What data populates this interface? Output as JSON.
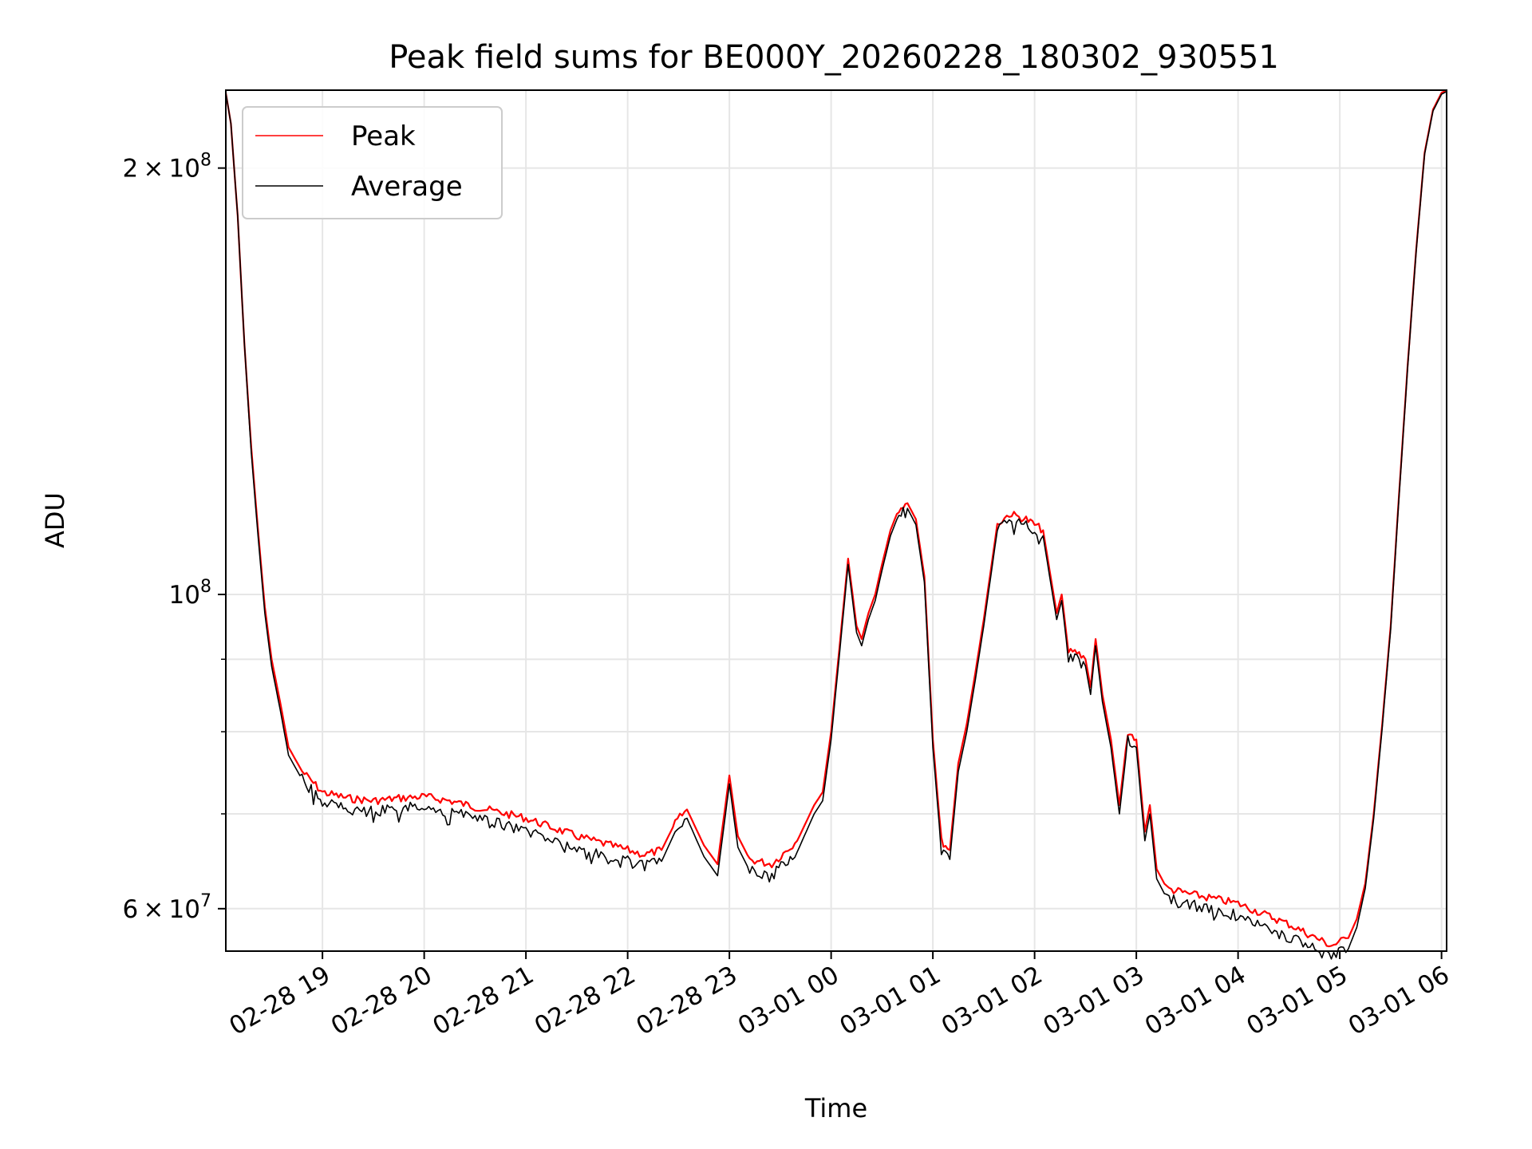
{
  "chart_data": {
    "type": "line",
    "title": "Peak field sums for BE000Y_20260228_180302_930551",
    "xlabel": "Time",
    "ylabel": "ADU",
    "x_start": "2026-02-28 18:03",
    "x_end": "2026-03-01 06:03",
    "xlim": [
      "2026-02-28 18:03",
      "2026-03-01 06:03"
    ],
    "yscale": "log",
    "ylim": [
      56000000,
      227000000
    ],
    "grid": true,
    "legend_position": "top-left",
    "x_ticks": [
      {
        "time": "2026-02-28 19:00",
        "label": "02-28 19"
      },
      {
        "time": "2026-02-28 20:00",
        "label": "02-28 20"
      },
      {
        "time": "2026-02-28 21:00",
        "label": "02-28 21"
      },
      {
        "time": "2026-02-28 22:00",
        "label": "02-28 22"
      },
      {
        "time": "2026-02-28 23:00",
        "label": "02-28 23"
      },
      {
        "time": "2026-03-01 00:00",
        "label": "03-01 00"
      },
      {
        "time": "2026-03-01 01:00",
        "label": "03-01 01"
      },
      {
        "time": "2026-03-01 02:00",
        "label": "03-01 02"
      },
      {
        "time": "2026-03-01 03:00",
        "label": "03-01 03"
      },
      {
        "time": "2026-03-01 04:00",
        "label": "03-01 04"
      },
      {
        "time": "2026-03-01 05:00",
        "label": "03-01 05"
      },
      {
        "time": "2026-03-01 06:00",
        "label": "03-01 06"
      }
    ],
    "y_major_ticks": [
      {
        "value": 60000000,
        "mantissa": "6",
        "exponent": "7"
      },
      {
        "value": 100000000,
        "mantissa": "",
        "exponent": "8"
      },
      {
        "value": 200000000,
        "mantissa": "2",
        "exponent": "8"
      }
    ],
    "y_minor_ticks": [
      70000000,
      80000000,
      90000000
    ],
    "series": [
      {
        "name": "Peak",
        "color": "#ff0000",
        "x": [
          "2026-02-28 18:03",
          "2026-02-28 18:06",
          "2026-02-28 18:10",
          "2026-02-28 18:14",
          "2026-02-28 18:18",
          "2026-02-28 18:22",
          "2026-02-28 18:26",
          "2026-02-28 18:30",
          "2026-02-28 18:35",
          "2026-02-28 18:40",
          "2026-02-28 18:48",
          "2026-02-28 19:00",
          "2026-02-28 19:15",
          "2026-02-28 19:30",
          "2026-02-28 19:45",
          "2026-02-28 20:00",
          "2026-02-28 20:15",
          "2026-02-28 20:30",
          "2026-02-28 21:00",
          "2026-02-28 21:30",
          "2026-02-28 22:00",
          "2026-02-28 22:10",
          "2026-02-28 22:20",
          "2026-02-28 22:28",
          "2026-02-28 22:35",
          "2026-02-28 22:45",
          "2026-02-28 22:53",
          "2026-02-28 23:00",
          "2026-02-28 23:05",
          "2026-02-28 23:12",
          "2026-02-28 23:25",
          "2026-02-28 23:40",
          "2026-02-28 23:50",
          "2026-02-28 23:55",
          "2026-03-01 00:00",
          "2026-03-01 00:05",
          "2026-03-01 00:10",
          "2026-03-01 00:15",
          "2026-03-01 00:18",
          "2026-03-01 00:22",
          "2026-03-01 00:26",
          "2026-03-01 00:30",
          "2026-03-01 00:35",
          "2026-03-01 00:40",
          "2026-03-01 00:45",
          "2026-03-01 00:50",
          "2026-03-01 00:55",
          "2026-03-01 01:00",
          "2026-03-01 01:05",
          "2026-03-01 01:10",
          "2026-03-01 01:15",
          "2026-03-01 01:20",
          "2026-03-01 01:25",
          "2026-03-01 01:30",
          "2026-03-01 01:38",
          "2026-03-01 01:45",
          "2026-03-01 01:55",
          "2026-03-01 02:00",
          "2026-03-01 02:05",
          "2026-03-01 02:10",
          "2026-03-01 02:13",
          "2026-03-01 02:16",
          "2026-03-01 02:20",
          "2026-03-01 02:25",
          "2026-03-01 02:30",
          "2026-03-01 02:33",
          "2026-03-01 02:36",
          "2026-03-01 02:40",
          "2026-03-01 02:45",
          "2026-03-01 02:50",
          "2026-03-01 02:55",
          "2026-03-01 03:00",
          "2026-03-01 03:05",
          "2026-03-01 03:08",
          "2026-03-01 03:12",
          "2026-03-01 03:18",
          "2026-03-01 03:30",
          "2026-03-01 04:00",
          "2026-03-01 04:30",
          "2026-03-01 04:55",
          "2026-03-01 05:05",
          "2026-03-01 05:10",
          "2026-03-01 05:15",
          "2026-03-01 05:20",
          "2026-03-01 05:25",
          "2026-03-01 05:30",
          "2026-03-01 05:35",
          "2026-03-01 05:40",
          "2026-03-01 05:45",
          "2026-03-01 05:50",
          "2026-03-01 05:55",
          "2026-03-01 06:00",
          "2026-03-01 06:03"
        ],
        "y": [
          226000000,
          215000000,
          185000000,
          150000000,
          127000000,
          111000000,
          98000000,
          90000000,
          84000000,
          78000000,
          75000000,
          72500000,
          71800000,
          71500000,
          71800000,
          72000000,
          71500000,
          70800000,
          69500000,
          67500000,
          66000000,
          65500000,
          66000000,
          69000000,
          70500000,
          66500000,
          64500000,
          74500000,
          67500000,
          65000000,
          64500000,
          67000000,
          71000000,
          72500000,
          80000000,
          92000000,
          106000000,
          95000000,
          93000000,
          97000000,
          100000000,
          105000000,
          111000000,
          115000000,
          116000000,
          113000000,
          103000000,
          79000000,
          67000000,
          66000000,
          76000000,
          81000000,
          88000000,
          96000000,
          112000000,
          114000000,
          113000000,
          112000000,
          111000000,
          102000000,
          97000000,
          100000000,
          91000000,
          91000000,
          90000000,
          86000000,
          93000000,
          85000000,
          79000000,
          71000000,
          80000000,
          79000000,
          68000000,
          71000000,
          64000000,
          62000000,
          61500000,
          60500000,
          58500000,
          56500000,
          57200000,
          59000000,
          62500000,
          70000000,
          81000000,
          95000000,
          118000000,
          145000000,
          175000000,
          205000000,
          220000000,
          226000000,
          227000000
        ]
      },
      {
        "name": "Average",
        "color": "#000000",
        "x": [
          "2026-02-28 18:03",
          "2026-02-28 18:06",
          "2026-02-28 18:10",
          "2026-02-28 18:14",
          "2026-02-28 18:18",
          "2026-02-28 18:22",
          "2026-02-28 18:26",
          "2026-02-28 18:30",
          "2026-02-28 18:35",
          "2026-02-28 18:40",
          "2026-02-28 18:48",
          "2026-02-28 19:00",
          "2026-02-28 19:15",
          "2026-02-28 19:30",
          "2026-02-28 19:45",
          "2026-02-28 20:00",
          "2026-02-28 20:15",
          "2026-02-28 20:30",
          "2026-02-28 21:00",
          "2026-02-28 21:30",
          "2026-02-28 22:00",
          "2026-02-28 22:10",
          "2026-02-28 22:20",
          "2026-02-28 22:28",
          "2026-02-28 22:35",
          "2026-02-28 22:45",
          "2026-02-28 22:53",
          "2026-02-28 23:00",
          "2026-02-28 23:05",
          "2026-02-28 23:12",
          "2026-02-28 23:25",
          "2026-02-28 23:40",
          "2026-02-28 23:50",
          "2026-02-28 23:55",
          "2026-03-01 00:00",
          "2026-03-01 00:05",
          "2026-03-01 00:10",
          "2026-03-01 00:15",
          "2026-03-01 00:18",
          "2026-03-01 00:22",
          "2026-03-01 00:26",
          "2026-03-01 00:30",
          "2026-03-01 00:35",
          "2026-03-01 00:40",
          "2026-03-01 00:45",
          "2026-03-01 00:50",
          "2026-03-01 00:55",
          "2026-03-01 01:00",
          "2026-03-01 01:05",
          "2026-03-01 01:10",
          "2026-03-01 01:15",
          "2026-03-01 01:20",
          "2026-03-01 01:25",
          "2026-03-01 01:30",
          "2026-03-01 01:38",
          "2026-03-01 01:45",
          "2026-03-01 01:55",
          "2026-03-01 02:00",
          "2026-03-01 02:05",
          "2026-03-01 02:10",
          "2026-03-01 02:13",
          "2026-03-01 02:16",
          "2026-03-01 02:20",
          "2026-03-01 02:25",
          "2026-03-01 02:30",
          "2026-03-01 02:33",
          "2026-03-01 02:36",
          "2026-03-01 02:40",
          "2026-03-01 02:45",
          "2026-03-01 02:50",
          "2026-03-01 02:55",
          "2026-03-01 03:00",
          "2026-03-01 03:05",
          "2026-03-01 03:08",
          "2026-03-01 03:12",
          "2026-03-01 03:18",
          "2026-03-01 03:30",
          "2026-03-01 04:00",
          "2026-03-01 04:30",
          "2026-03-01 04:55",
          "2026-03-01 05:05",
          "2026-03-01 05:10",
          "2026-03-01 05:15",
          "2026-03-01 05:20",
          "2026-03-01 05:25",
          "2026-03-01 05:30",
          "2026-03-01 05:35",
          "2026-03-01 05:40",
          "2026-03-01 05:45",
          "2026-03-01 05:50",
          "2026-03-01 05:55",
          "2026-03-01 06:00",
          "2026-03-01 06:03"
        ],
        "y": [
          226000000,
          215000000,
          185000000,
          150000000,
          126000000,
          110000000,
          97000000,
          89000000,
          83000000,
          77000000,
          74000000,
          71300000,
          70500000,
          70300000,
          70600000,
          70800000,
          70200000,
          69500000,
          68200000,
          66200000,
          64800000,
          64300000,
          64800000,
          68000000,
          69500000,
          65300000,
          63300000,
          73500000,
          66300000,
          63800000,
          63300000,
          65800000,
          70000000,
          71500000,
          79000000,
          91000000,
          105000000,
          94000000,
          92000000,
          96000000,
          99000000,
          104000000,
          110000000,
          114000000,
          115000000,
          112000000,
          102000000,
          78000000,
          66000000,
          65000000,
          75000000,
          80000000,
          87000000,
          95000000,
          111000000,
          113000000,
          112000000,
          111000000,
          110000000,
          101000000,
          96000000,
          99000000,
          90000000,
          90000000,
          89000000,
          85000000,
          92000000,
          84000000,
          78000000,
          70000000,
          79000000,
          78000000,
          67000000,
          70000000,
          63000000,
          61000000,
          60500000,
          59300000,
          57300000,
          55500000,
          56200000,
          58200000,
          62000000,
          69500000,
          80500000,
          94500000,
          117500000,
          144500000,
          174500000,
          204500000,
          219500000,
          225500000,
          226500000
        ]
      }
    ]
  }
}
